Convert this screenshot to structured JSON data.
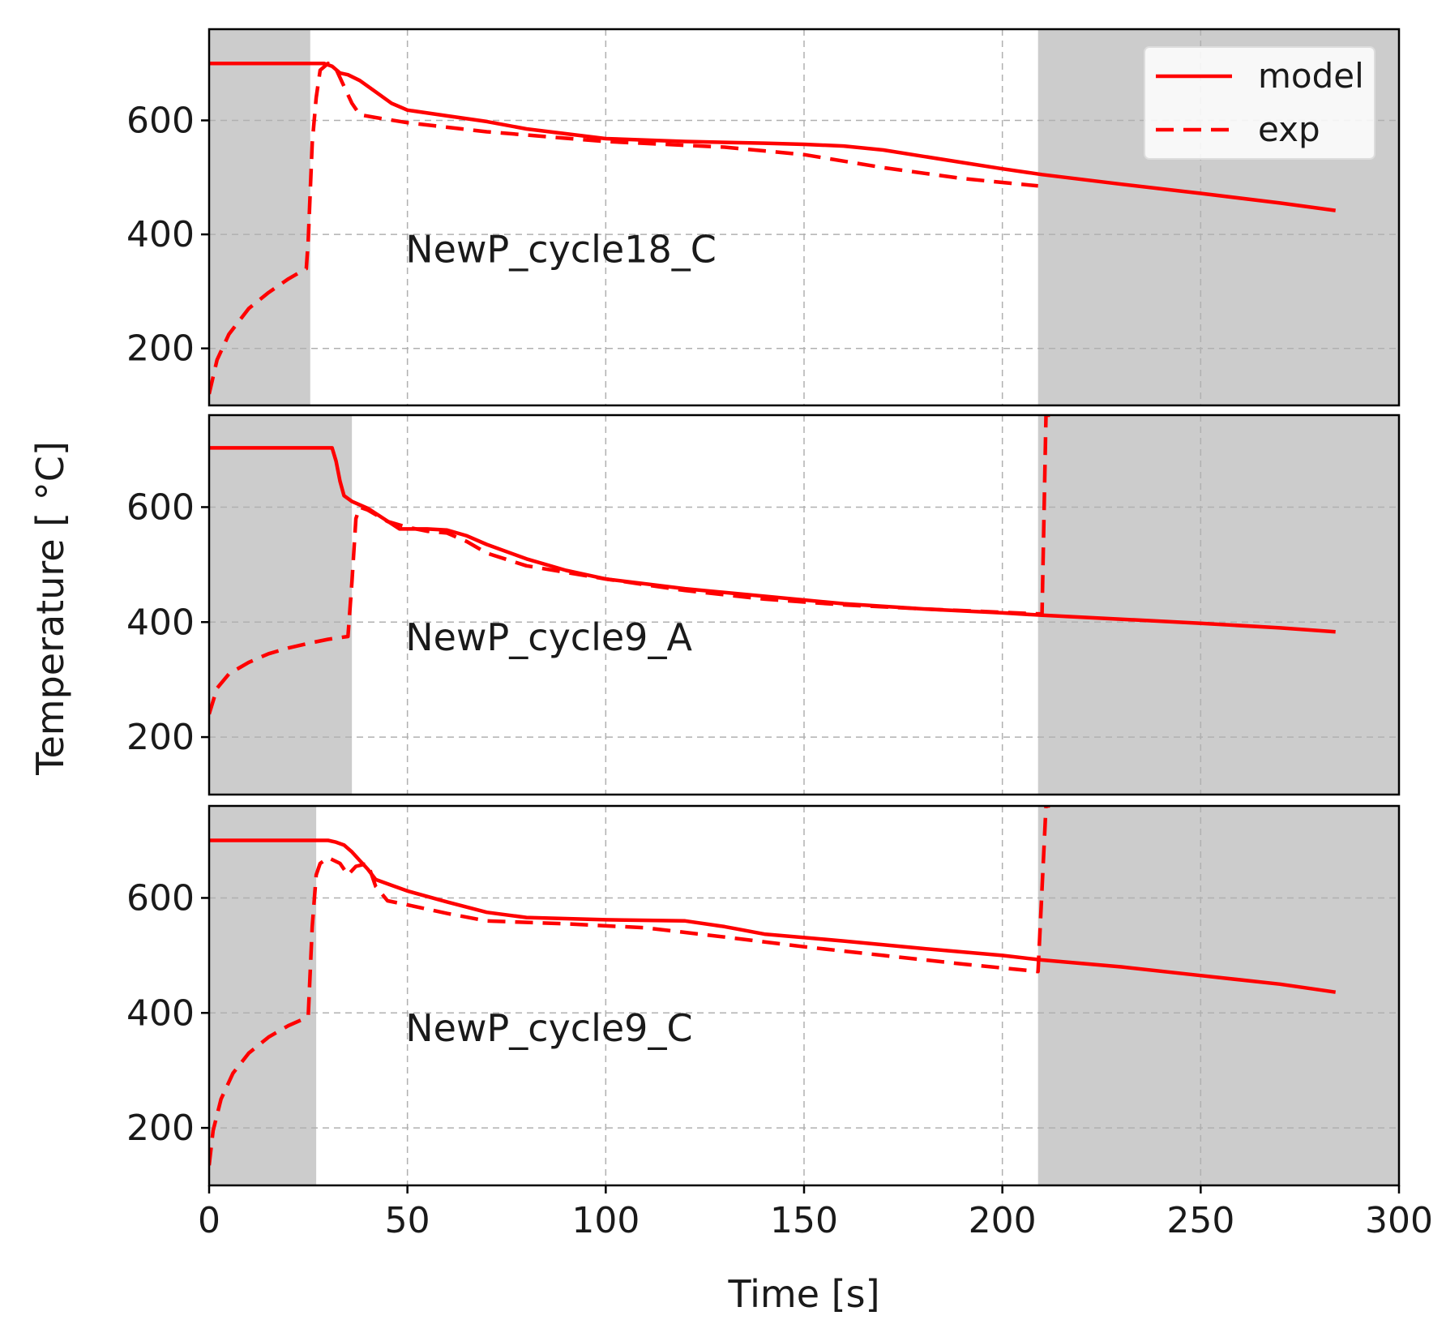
{
  "chart_data": {
    "type": "line",
    "xlabel": "Time [s]",
    "ylabel": "Temperature [$^\\circ$C]",
    "ylabel_display": "Temperature [ °C]",
    "xlim": [
      0,
      300
    ],
    "ylim": [
      100,
      760
    ],
    "xticks": [
      0,
      50,
      100,
      150,
      200,
      250,
      300
    ],
    "yticks": [
      200,
      400,
      600
    ],
    "grid": true,
    "legend": {
      "position": "top-right",
      "entries": [
        {
          "label": "model",
          "style": "solid"
        },
        {
          "label": "exp",
          "style": "dashed"
        }
      ]
    },
    "colors": {
      "series": "#ff0000",
      "shade": "#cccccc",
      "grid": "#b0b0b0"
    },
    "panels": [
      {
        "label": "NewP_cycle18_C",
        "shaded_regions": [
          [
            0,
            25.5
          ],
          [
            209,
            300
          ]
        ],
        "series": [
          {
            "name": "model",
            "style": "solid",
            "x": [
              0,
              29,
              31,
              33,
              35,
              38,
              42,
              46,
              50,
              60,
              70,
              80,
              100,
              120,
              140,
              150,
              160,
              170,
              180,
              190,
              200,
              210,
              230,
              250,
              270,
              284
            ],
            "y": [
              700,
              700,
              695,
              683,
              680,
              670,
              650,
              630,
              618,
              608,
              598,
              585,
              568,
              563,
              560,
              558,
              555,
              548,
              537,
              526,
              515,
              505,
              488,
              472,
              455,
              442
            ]
          },
          {
            "name": "exp",
            "style": "dashed",
            "x": [
              0,
              2,
              5,
              10,
              15,
              20,
              24.5,
              25,
              26,
              27,
              28,
              30,
              32,
              34,
              36,
              38,
              42,
              50,
              70,
              100,
              130,
              150,
              170,
              190,
              209
            ],
            "y": [
              120,
              180,
              225,
              270,
              298,
              322,
              340,
              390,
              560,
              640,
              688,
              700,
              690,
              660,
              630,
              610,
              605,
              596,
              580,
              563,
              553,
              540,
              517,
              498,
              485
            ]
          }
        ]
      },
      {
        "label": "NewP_cycle9_A",
        "shaded_regions": [
          [
            0,
            36
          ],
          [
            209,
            300
          ]
        ],
        "series": [
          {
            "name": "model",
            "style": "solid",
            "x": [
              0,
              31,
              32,
              33,
              34,
              36,
              40,
              44,
              48,
              55,
              60,
              65,
              70,
              80,
              90,
              100,
              120,
              140,
              160,
              180,
              200,
              210,
              230,
              250,
              270,
              284
            ],
            "y": [
              703,
              703,
              680,
              645,
              620,
              610,
              598,
              580,
              562,
              562,
              560,
              550,
              535,
              510,
              490,
              475,
              458,
              445,
              432,
              423,
              416,
              412,
              405,
              398,
              390,
              383
            ]
          },
          {
            "name": "exp",
            "style": "dashed",
            "x": [
              0,
              2,
              5,
              10,
              15,
              20,
              25,
              30,
              35,
              36,
              37,
              38,
              40,
              45,
              50,
              55,
              60,
              65,
              70,
              80,
              100,
              120,
              140,
              160,
              180,
              200,
              210,
              211,
              212
            ],
            "y": [
              240,
              285,
              310,
              330,
              345,
              355,
              363,
              370,
              375,
              470,
              580,
              600,
              595,
              575,
              565,
              558,
              555,
              540,
              520,
              498,
              475,
              455,
              440,
              430,
              423,
              417,
              414,
              760,
              760
            ]
          }
        ]
      },
      {
        "label": "NewP_cycle9_C",
        "shaded_regions": [
          [
            0,
            27
          ],
          [
            209,
            300
          ]
        ],
        "series": [
          {
            "name": "model",
            "style": "solid",
            "x": [
              0,
              30,
              32,
              34,
              36,
              38,
              40,
              42,
              46,
              50,
              60,
              70,
              80,
              100,
              120,
              130,
              140,
              160,
              180,
              200,
              210,
              230,
              250,
              270,
              284
            ],
            "y": [
              700,
              700,
              697,
              692,
              680,
              665,
              650,
              632,
              622,
              612,
              593,
              575,
              566,
              562,
              560,
              550,
              537,
              525,
              512,
              500,
              492,
              480,
              465,
              450,
              436
            ]
          },
          {
            "name": "exp",
            "style": "dashed",
            "x": [
              0,
              1,
              3,
              6,
              10,
              15,
              20,
              24,
              25,
              26,
              27,
              28,
              30,
              33,
              35,
              37,
              40,
              42,
              45,
              50,
              60,
              70,
              90,
              110,
              130,
              150,
              170,
              190,
              209,
              211,
              212
            ],
            "y": [
              135,
              195,
              250,
              295,
              330,
              358,
              378,
              390,
              395,
              550,
              640,
              660,
              670,
              660,
              640,
              655,
              660,
              620,
              595,
              588,
              573,
              560,
              555,
              548,
              532,
              515,
              500,
              485,
              472,
              760,
              760
            ]
          }
        ]
      }
    ]
  }
}
